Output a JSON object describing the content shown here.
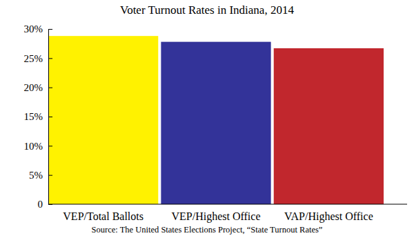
{
  "chart_data": {
    "type": "bar",
    "title": "Voter Turnout Rates in Indiana, 2014",
    "source": "Source: The United States Elections Project, “State Turnout Rates”",
    "categories": [
      "VEP/Total Ballots",
      "VEP/Highest Office",
      "VAP/Highest Office"
    ],
    "values": [
      28.8,
      27.8,
      26.7
    ],
    "colors": [
      "#fff200",
      "#333399",
      "#c1272d"
    ],
    "ylim": [
      0,
      30
    ],
    "yticks": [
      0,
      {
        "value": 5,
        "label": "5%"
      },
      {
        "value": 10,
        "label": "10%"
      },
      {
        "value": 15,
        "label": "15%"
      },
      {
        "value": 20,
        "label": "20%"
      },
      {
        "value": 25,
        "label": "25%"
      },
      {
        "value": 30,
        "label": "30%"
      }
    ],
    "grid": false
  }
}
